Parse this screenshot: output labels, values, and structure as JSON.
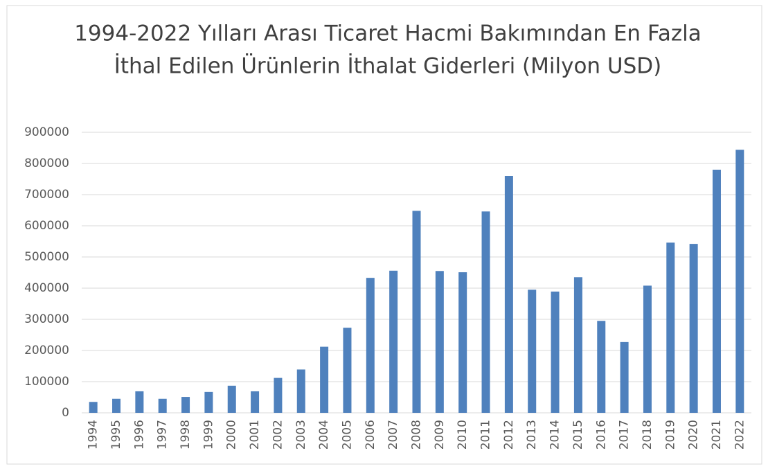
{
  "chart_data": {
    "type": "bar",
    "title": [
      "1994-2022 Yılları Arası Ticaret Hacmi Bakımından En Fazla",
      "İthal Edilen Ürünlerin İthalat Giderleri (Milyon USD)"
    ],
    "categories": [
      "1994",
      "1995",
      "1996",
      "1997",
      "1998",
      "1999",
      "2000",
      "2001",
      "2002",
      "2003",
      "2004",
      "2005",
      "2006",
      "2007",
      "2008",
      "2009",
      "2010",
      "2011",
      "2012",
      "2013",
      "2014",
      "2015",
      "2016",
      "2017",
      "2018",
      "2019",
      "2020",
      "2021",
      "2022"
    ],
    "values": [
      35000,
      45000,
      69000,
      45000,
      51000,
      67000,
      87000,
      69000,
      112000,
      139000,
      212000,
      273000,
      433000,
      456000,
      648000,
      455000,
      451000,
      646000,
      760000,
      395000,
      389000,
      435000,
      295000,
      227000,
      408000,
      546000,
      542000,
      780000,
      844000
    ],
    "color": "#4f81bd",
    "ylim": [
      0,
      900000
    ],
    "yticks": [
      0,
      100000,
      200000,
      300000,
      400000,
      500000,
      600000,
      700000,
      800000,
      900000
    ],
    "grid": true
  }
}
